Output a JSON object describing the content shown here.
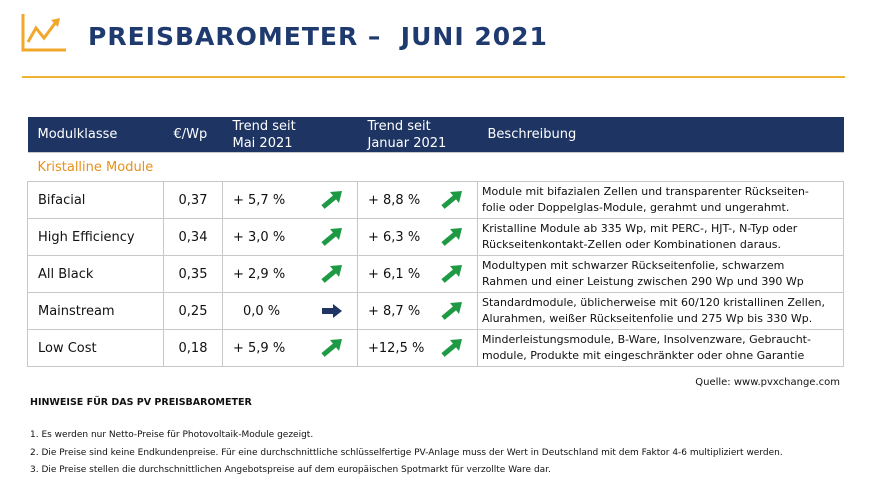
{
  "header": {
    "title": "PREISBAROMETER –  JUNI 2021"
  },
  "table": {
    "columns": [
      "Modulklasse",
      "€/Wp",
      "Trend seit\nMai 2021",
      "Trend seit\nJanuar 2021",
      "Beschreibung"
    ],
    "section": "Kristalline Module",
    "rows": [
      [
        "Bifacial",
        "0,37",
        "+ 5,7 %",
        "+ 8,8 %",
        "Module mit bifazialen Zellen und transparenter Rückseiten-\nfolie oder Doppelglas-Module, gerahmt und ungerahmt."
      ],
      [
        "High Efficiency",
        "0,34",
        "+ 3,0 %",
        "+ 6,3 %",
        "Kristalline Module ab 335 Wp, mit PERC-, HJT-, N-Typ oder\nRückseitenkontakt-Zellen oder Kombinationen daraus."
      ],
      [
        "All Black",
        "0,35",
        "+ 2,9 %",
        "+ 6,1 %",
        "Modultypen mit schwarzer Rückseitenfolie, schwarzem\nRahmen und einer Leistung  zwischen 290 Wp und 390 Wp"
      ],
      [
        "Mainstream",
        "0,25",
        "0,0 %",
        "+ 8,7 %",
        "Standardmodule, üblicherweise mit 60/120 kristallinen Zellen,\nAlurahmen, weißer Rückseitenfolie und 275 Wp bis 330 Wp."
      ],
      [
        "Low Cost",
        "0,18",
        "+ 5,9 %",
        "+12,5 %",
        "Minderleistungsmodule, B-Ware, Insolvenzware, Gebraucht-\nmodule, Produkte mit eingeschränkter oder ohne Garantie"
      ]
    ]
  },
  "source": "Quelle: www.pvxchange.com",
  "notes": {
    "title": "HINWEISE FÜR DAS PV PREISBAROMETER",
    "items": [
      "1.  Es werden nur Netto-Preise für Photovoltaik-Module gezeigt.",
      "2. Die Preise sind keine Endkundenpreise. Für eine durchschnittliche schlüsselfertige PV-Anlage muss der Wert in Deutschland mit dem Faktor 4-6 multipliziert werden.",
      "3. Die Preise stellen die durchschnittlichen Angebotspreise auf dem europäischen Spotmarkt für verzollte Ware dar."
    ]
  }
}
